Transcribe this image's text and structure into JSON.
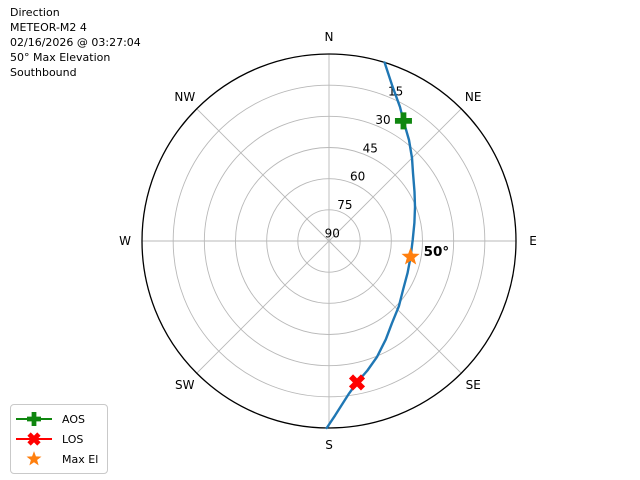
{
  "info": {
    "lines": [
      "Direction",
      "METEOR-M2 4",
      "02/16/2026 @ 03:27:04",
      "50° Max Elevation",
      "Southbound"
    ]
  },
  "legend": {
    "items": [
      {
        "label": "AOS",
        "marker": "plus",
        "color": "#0f860f",
        "has_line": true
      },
      {
        "label": "LOS",
        "marker": "x",
        "color": "#ff0000",
        "has_line": true
      },
      {
        "label": "Max El",
        "marker": "star",
        "color": "#ff7f0e",
        "has_line": false
      }
    ]
  },
  "chart_data": {
    "type": "polar-sky-plot",
    "title": "Direction",
    "satellite": "METEOR-M2 4",
    "timestamp": "02/16/2026 @ 03:27:04",
    "max_elevation_deg": 50,
    "pass_direction": "Southbound",
    "compass_labels": [
      "N",
      "NE",
      "E",
      "SE",
      "S",
      "SW",
      "W",
      "NW"
    ],
    "compass_azimuths_deg": [
      0,
      45,
      90,
      135,
      180,
      225,
      270,
      315
    ],
    "elevation_ring_labels": [
      "15",
      "30",
      "45",
      "60",
      "75",
      "90"
    ],
    "elevation_ring_values": [
      15,
      30,
      45,
      60,
      75,
      90
    ],
    "ring_label_azimuth_deg": 24,
    "grid_color": "#b8b8b8",
    "outline_color": "#000000",
    "track": {
      "color": "#1f77b4",
      "points_az_el": [
        [
          17.3,
          0
        ],
        [
          22,
          9
        ],
        [
          27.9,
          17
        ],
        [
          31.8,
          22
        ],
        [
          38.4,
          28
        ],
        [
          45,
          33.5
        ],
        [
          51,
          38
        ],
        [
          60,
          42.5
        ],
        [
          68.4,
          45.5
        ],
        [
          78,
          48
        ],
        [
          89.3,
          49.7
        ],
        [
          101,
          50
        ],
        [
          112,
          49.2
        ],
        [
          123.5,
          47.3
        ],
        [
          133,
          44
        ],
        [
          142.5,
          40.2
        ],
        [
          150,
          35.3
        ],
        [
          157.5,
          29.6
        ],
        [
          163.5,
          25
        ],
        [
          168.8,
          20.6
        ],
        [
          172.5,
          16
        ],
        [
          175.1,
          11.7
        ],
        [
          178,
          6
        ],
        [
          180.7,
          0
        ]
      ]
    },
    "markers": [
      {
        "label": "AOS",
        "shape": "plus",
        "color": "#0f860f",
        "az": 31.8,
        "el": 22,
        "annotation": ""
      },
      {
        "label": "LOS",
        "shape": "x",
        "color": "#ff0000",
        "az": 168.8,
        "el": 20.6,
        "annotation": ""
      },
      {
        "label": "Max El",
        "shape": "star",
        "color": "#ff7f0e",
        "az": 101,
        "el": 50,
        "annotation": "50°"
      }
    ]
  }
}
